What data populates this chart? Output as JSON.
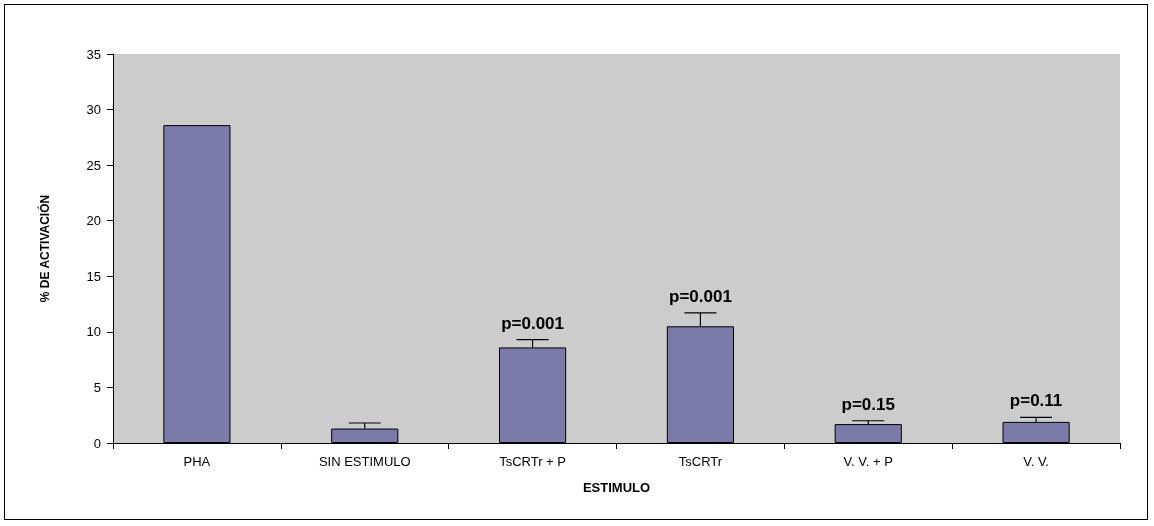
{
  "chart_data": {
    "type": "bar",
    "xlabel": "ESTIMULO",
    "ylabel": "% DE ACTIVACIÓN",
    "categories": [
      "PHA",
      "SIN ESTIMULO",
      "TsCRTr + P",
      "TsCRTr",
      "V. V. + P",
      "V. V."
    ],
    "values": [
      28.6,
      1.3,
      8.6,
      10.5,
      1.7,
      1.9
    ],
    "errors": [
      null,
      [
        1.3,
        1.8
      ],
      [
        8.6,
        9.3
      ],
      [
        10.5,
        11.7
      ],
      [
        1.7,
        2.0
      ],
      [
        1.9,
        2.3
      ]
    ],
    "color": "#7b7baa",
    "ylim": [
      0,
      35
    ],
    "yticks": [
      0,
      5,
      10,
      15,
      20,
      25,
      30,
      35
    ],
    "grid": false,
    "annotations": [
      {
        "text": "p=0.001",
        "x": "TsCRTr + P",
        "y": 9.3
      },
      {
        "text": "p=0.001",
        "x": "TsCRTr",
        "y": 11.7
      },
      {
        "text": "p=0.15",
        "x": "V. V. + P",
        "y": 2.0
      },
      {
        "text": "p=0.11",
        "x": "V. V.",
        "y": 2.3
      }
    ]
  }
}
